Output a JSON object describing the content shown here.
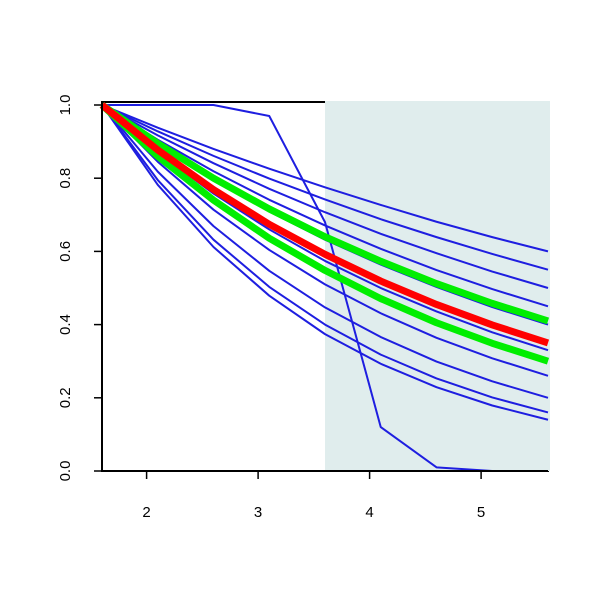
{
  "chart_data": {
    "type": "line",
    "x": [
      1.6,
      2.1,
      2.6,
      3.1,
      3.6,
      4.1,
      4.6,
      5.1,
      5.6
    ],
    "xlim": [
      1.6,
      5.6
    ],
    "ylim": [
      0,
      1
    ],
    "xticks": [
      2,
      3,
      4,
      5
    ],
    "yticks": [
      {
        "value": 0,
        "label": "0.0"
      },
      {
        "value": 0.2,
        "label": "0.2"
      },
      {
        "value": 0.4,
        "label": "0.4"
      },
      {
        "value": 0.6,
        "label": "0.6"
      },
      {
        "value": 0.8,
        "label": "0.8"
      },
      {
        "value": 1,
        "label": "1.0"
      }
    ],
    "shade": {
      "xmin": 3.6,
      "xmax": 5.6,
      "color": "#e0eded"
    },
    "series": [
      {
        "color": "#1e1ee0",
        "lwd": 2,
        "values": [
          1,
          0.938,
          0.88,
          0.826,
          0.775,
          0.727,
          0.681,
          0.639,
          0.6
        ]
      },
      {
        "color": "#1e1ee0",
        "lwd": 2,
        "values": [
          1,
          0.928,
          0.861,
          0.799,
          0.742,
          0.688,
          0.639,
          0.593,
          0.55
        ]
      },
      {
        "color": "#1e1ee0",
        "lwd": 2,
        "values": [
          1,
          0.917,
          0.841,
          0.771,
          0.707,
          0.648,
          0.595,
          0.545,
          0.5
        ]
      },
      {
        "color": "#1e1ee0",
        "lwd": 2,
        "values": [
          1,
          0.905,
          0.819,
          0.741,
          0.671,
          0.607,
          0.549,
          0.497,
          0.45
        ]
      },
      {
        "color": "#1e1ee0",
        "lwd": 2,
        "values": [
          1,
          0.892,
          0.795,
          0.709,
          0.632,
          0.564,
          0.503,
          0.448,
          0.4
        ]
      },
      {
        "color": "#1e1ee0",
        "lwd": 2,
        "values": [
          1,
          0.871,
          0.758,
          0.66,
          0.574,
          0.5,
          0.436,
          0.379,
          0.33
        ]
      },
      {
        "color": "#1e1ee0",
        "lwd": 2,
        "values": [
          1,
          0.845,
          0.714,
          0.604,
          0.51,
          0.431,
          0.364,
          0.308,
          0.26
        ]
      },
      {
        "color": "#1e1ee0",
        "lwd": 2,
        "values": [
          1,
          0.818,
          0.669,
          0.547,
          0.447,
          0.366,
          0.299,
          0.245,
          0.2
        ]
      },
      {
        "color": "#1e1ee0",
        "lwd": 2,
        "values": [
          1,
          0.795,
          0.632,
          0.503,
          0.4,
          0.318,
          0.253,
          0.201,
          0.16
        ]
      },
      {
        "color": "#1e1ee0",
        "lwd": 2,
        "values": [
          1,
          0.782,
          0.612,
          0.479,
          0.374,
          0.293,
          0.229,
          0.179,
          0.14
        ]
      },
      {
        "color": "#1e1ee0",
        "lwd": 2,
        "values": [
          1,
          1,
          1,
          0.97,
          0.68,
          0.12,
          0.01,
          0,
          0
        ]
      },
      {
        "color": "#00ee00",
        "lwd": 7,
        "values": [
          1,
          0.895,
          0.8,
          0.716,
          0.64,
          0.573,
          0.512,
          0.458,
          0.41
        ]
      },
      {
        "color": "#00ee00",
        "lwd": 7,
        "values": [
          1,
          0.86,
          0.74,
          0.636,
          0.548,
          0.471,
          0.405,
          0.349,
          0.3
        ]
      },
      {
        "color": "#ff0000",
        "lwd": 7,
        "values": [
          1,
          0.877,
          0.769,
          0.674,
          0.592,
          0.519,
          0.455,
          0.399,
          0.35
        ]
      }
    ]
  }
}
